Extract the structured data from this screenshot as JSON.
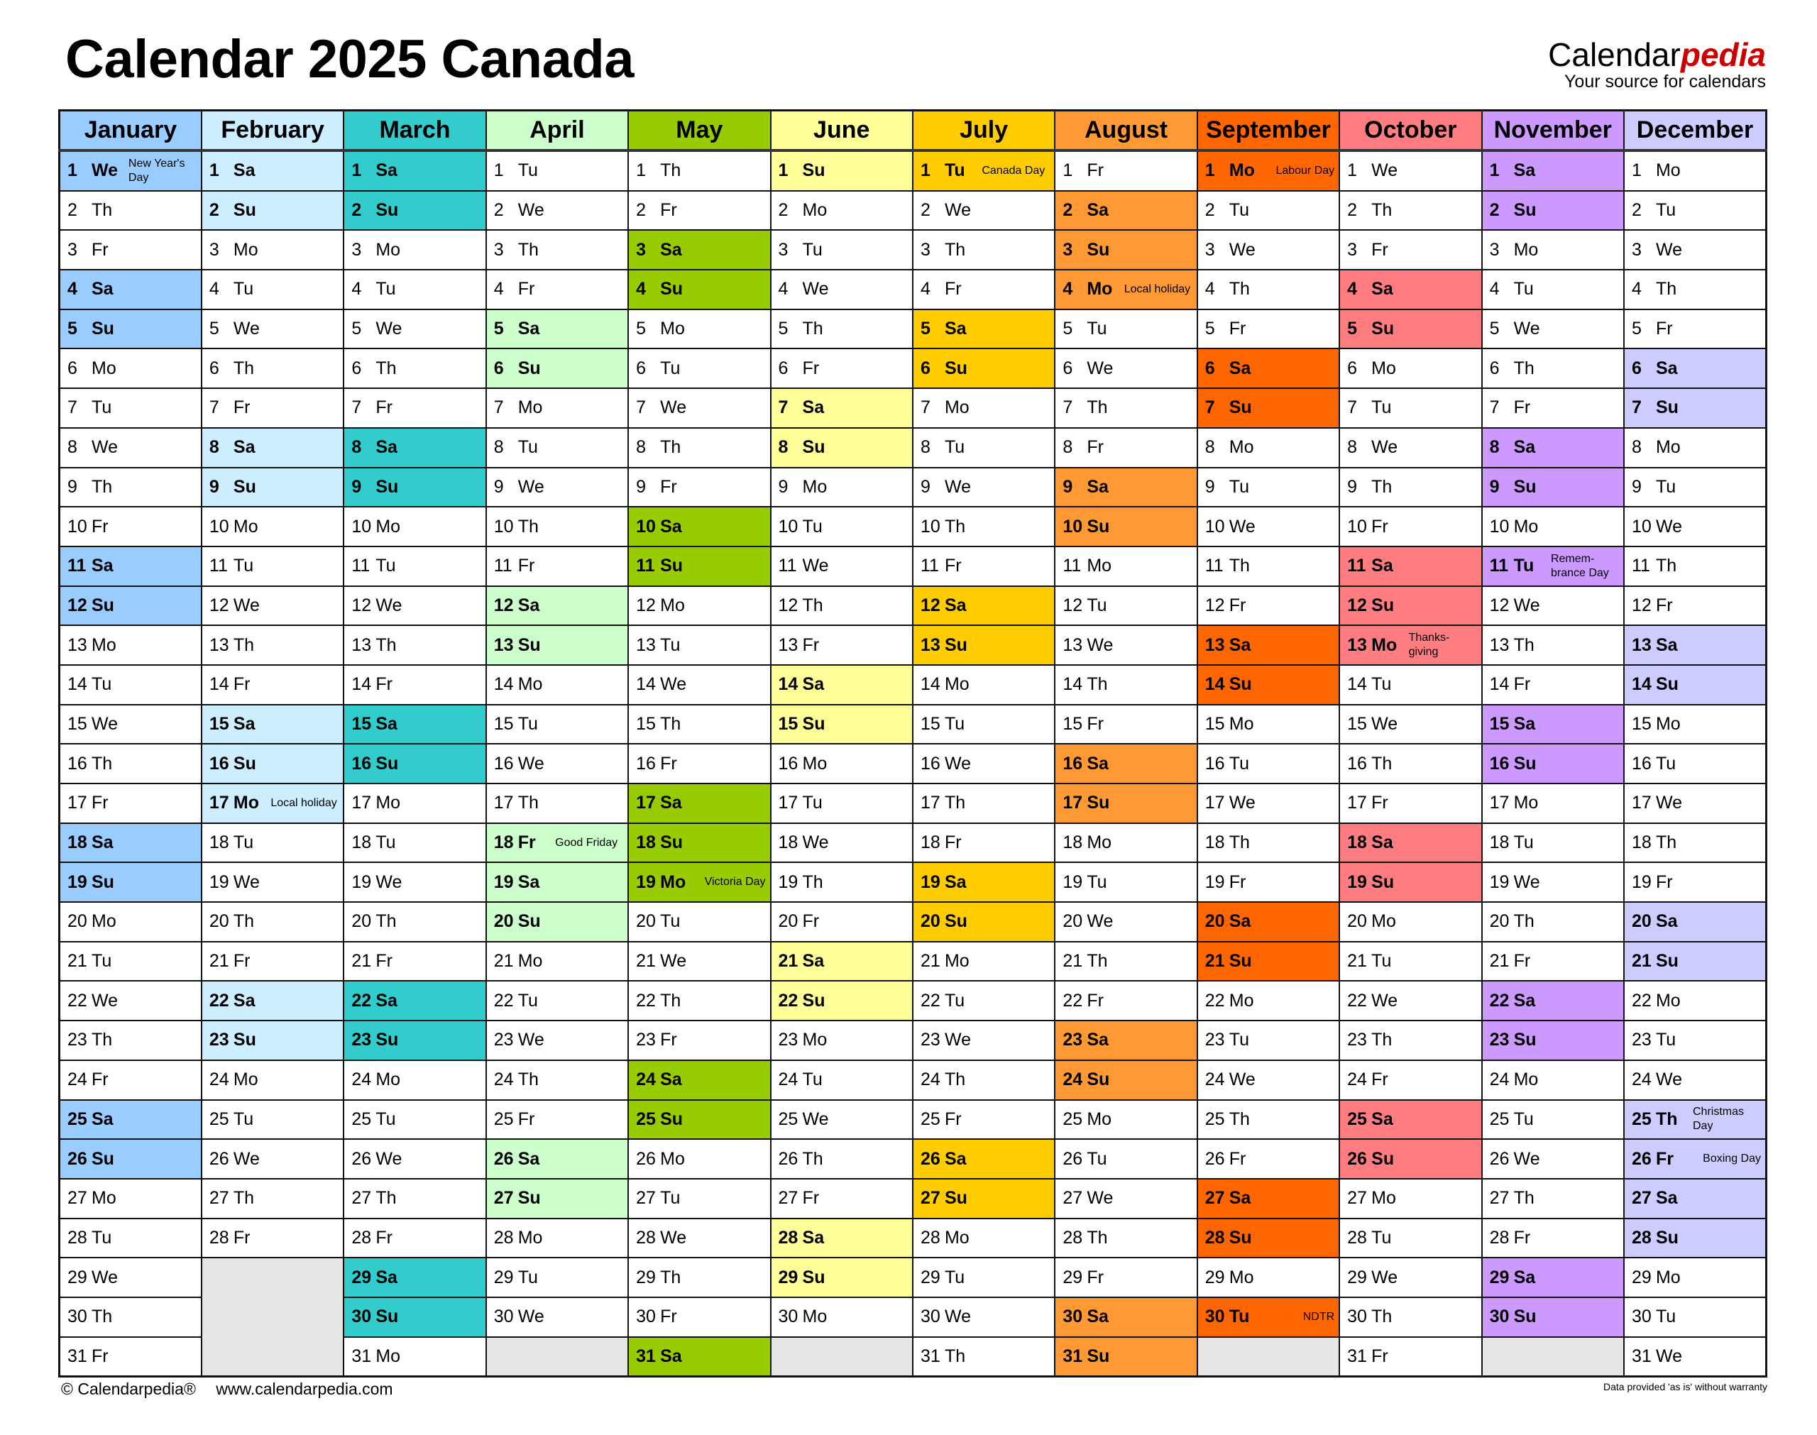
{
  "header": {
    "title": "Calendar 2025 Canada"
  },
  "logo": {
    "brand_main": "Calendar",
    "brand_accent": "pedia",
    "tagline": "Your source for calendars",
    "accent_color": "#cc0000"
  },
  "months": [
    {
      "name": "January",
      "color": "#99ccff",
      "start": "We",
      "length": 31
    },
    {
      "name": "February",
      "color": "#cceeff",
      "start": "Sa",
      "length": 28
    },
    {
      "name": "March",
      "color": "#33cccc",
      "start": "Sa",
      "length": 31
    },
    {
      "name": "April",
      "color": "#ccffcc",
      "start": "Tu",
      "length": 30
    },
    {
      "name": "May",
      "color": "#99cc00",
      "start": "Th",
      "length": 31
    },
    {
      "name": "June",
      "color": "#ffff99",
      "start": "Su",
      "length": 30
    },
    {
      "name": "July",
      "color": "#ffcc00",
      "start": "Tu",
      "length": 31
    },
    {
      "name": "August",
      "color": "#ff9933",
      "start": "Fr",
      "length": 31
    },
    {
      "name": "September",
      "color": "#ff6600",
      "start": "Mo",
      "length": 30
    },
    {
      "name": "October",
      "color": "#ff7c80",
      "start": "We",
      "length": 31
    },
    {
      "name": "November",
      "color": "#cc99ff",
      "start": "Sa",
      "length": 30
    },
    {
      "name": "December",
      "color": "#ccccff",
      "start": "Mo",
      "length": 31
    }
  ],
  "weekdays": [
    "Mo",
    "Tu",
    "We",
    "Th",
    "Fr",
    "Sa",
    "Su"
  ],
  "holidays": [
    {
      "month": 1,
      "day": 1,
      "label": "New Year's Day"
    },
    {
      "month": 2,
      "day": 17,
      "label": "Local holiday"
    },
    {
      "month": 4,
      "day": 18,
      "label": "Good Friday"
    },
    {
      "month": 5,
      "day": 19,
      "label": "Victoria Day"
    },
    {
      "month": 7,
      "day": 1,
      "label": "Canada Day"
    },
    {
      "month": 8,
      "day": 4,
      "label": "Local holiday"
    },
    {
      "month": 9,
      "day": 1,
      "label": "Labour Day"
    },
    {
      "month": 9,
      "day": 30,
      "label": "NDTR"
    },
    {
      "month": 10,
      "day": 13,
      "label": "Thanks-giving"
    },
    {
      "month": 11,
      "day": 11,
      "label": "Remem-brance Day"
    },
    {
      "month": 12,
      "day": 25,
      "label": "Christmas Day"
    },
    {
      "month": 12,
      "day": 26,
      "label": "Boxing Day"
    }
  ],
  "footer": {
    "copyright": "© Calendarpedia®",
    "url": "www.calendarpedia.com",
    "disclaimer": "Data provided 'as is' without warranty"
  }
}
